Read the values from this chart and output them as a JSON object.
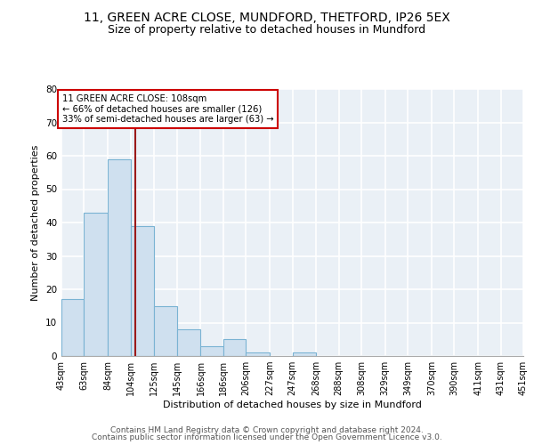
{
  "title1": "11, GREEN ACRE CLOSE, MUNDFORD, THETFORD, IP26 5EX",
  "title2": "Size of property relative to detached houses in Mundford",
  "xlabel": "Distribution of detached houses by size in Mundford",
  "ylabel": "Number of detached properties",
  "footer1": "Contains HM Land Registry data © Crown copyright and database right 2024.",
  "footer2": "Contains public sector information licensed under the Open Government Licence v3.0.",
  "bin_edges": [
    43,
    63,
    84,
    104,
    125,
    145,
    166,
    186,
    206,
    227,
    247,
    268,
    288,
    308,
    329,
    349,
    370,
    390,
    411,
    431,
    451
  ],
  "bar_heights": [
    17,
    43,
    59,
    39,
    15,
    8,
    3,
    5,
    1,
    0,
    1,
    0,
    0,
    0,
    0,
    0,
    0,
    0,
    0,
    0
  ],
  "bar_color": "#cfe0ef",
  "bar_edge_color": "#7ab3d3",
  "vline_x": 108,
  "vline_color": "#9b1a1a",
  "ylim": [
    0,
    80
  ],
  "annotation_text": "11 GREEN ACRE CLOSE: 108sqm\n← 66% of detached houses are smaller (126)\n33% of semi-detached houses are larger (63) →",
  "annotation_box_color": "#cc0000",
  "background_color": "#eaf0f6",
  "grid_color": "#ffffff",
  "title1_fontsize": 10,
  "title2_fontsize": 9,
  "xlabel_fontsize": 8,
  "ylabel_fontsize": 8,
  "tick_fontsize": 7,
  "tick_labels": [
    "43sqm",
    "63sqm",
    "84sqm",
    "104sqm",
    "125sqm",
    "145sqm",
    "166sqm",
    "186sqm",
    "206sqm",
    "227sqm",
    "247sqm",
    "268sqm",
    "288sqm",
    "308sqm",
    "329sqm",
    "349sqm",
    "370sqm",
    "390sqm",
    "411sqm",
    "431sqm",
    "451sqm"
  ]
}
